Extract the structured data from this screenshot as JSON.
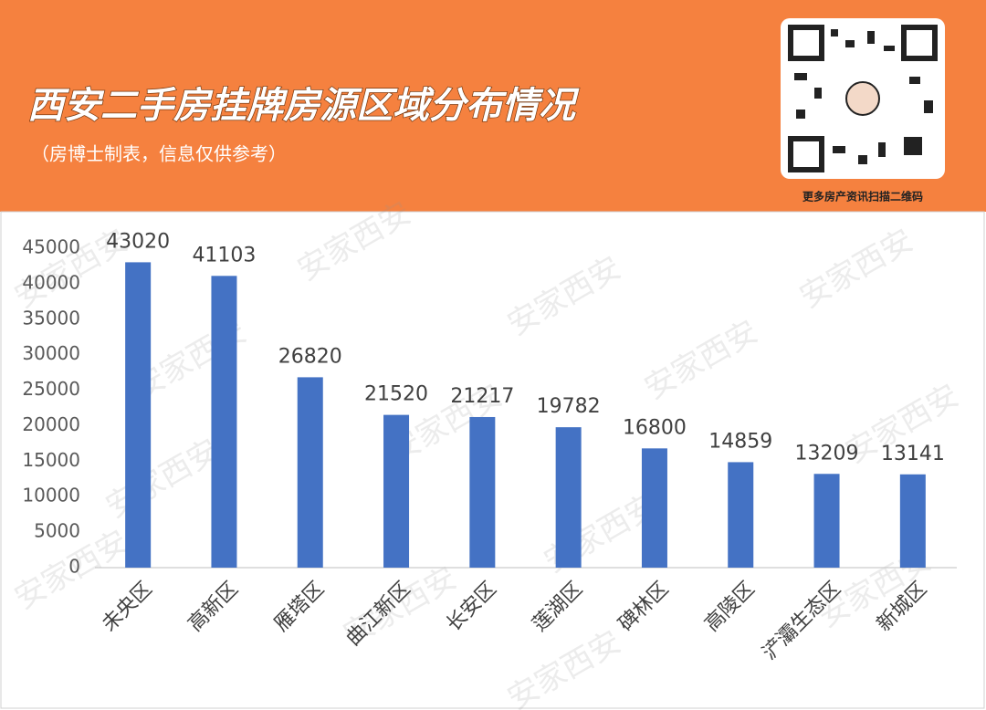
{
  "header": {
    "title": "西安二手房挂牌房源区域分布情况",
    "subtitle": "（房博士制表，信息仅供参考）",
    "qr_caption": "更多房产资讯扫描二维码"
  },
  "chart_data": {
    "type": "bar",
    "watermark": "安家西安",
    "categories": [
      "未央区",
      "高新区",
      "雁塔区",
      "曲江新区",
      "长安区",
      "莲湖区",
      "碑林区",
      "高陵区",
      "浐灞生态区",
      "新城区"
    ],
    "values": [
      43020,
      41103,
      26820,
      21520,
      21217,
      19782,
      16800,
      14859,
      13209,
      13141
    ],
    "color": "#4472c4",
    "ylim": [
      0,
      45000
    ],
    "yticks": [
      0,
      5000,
      10000,
      15000,
      20000,
      25000,
      30000,
      35000,
      40000,
      45000
    ],
    "grid": false
  }
}
